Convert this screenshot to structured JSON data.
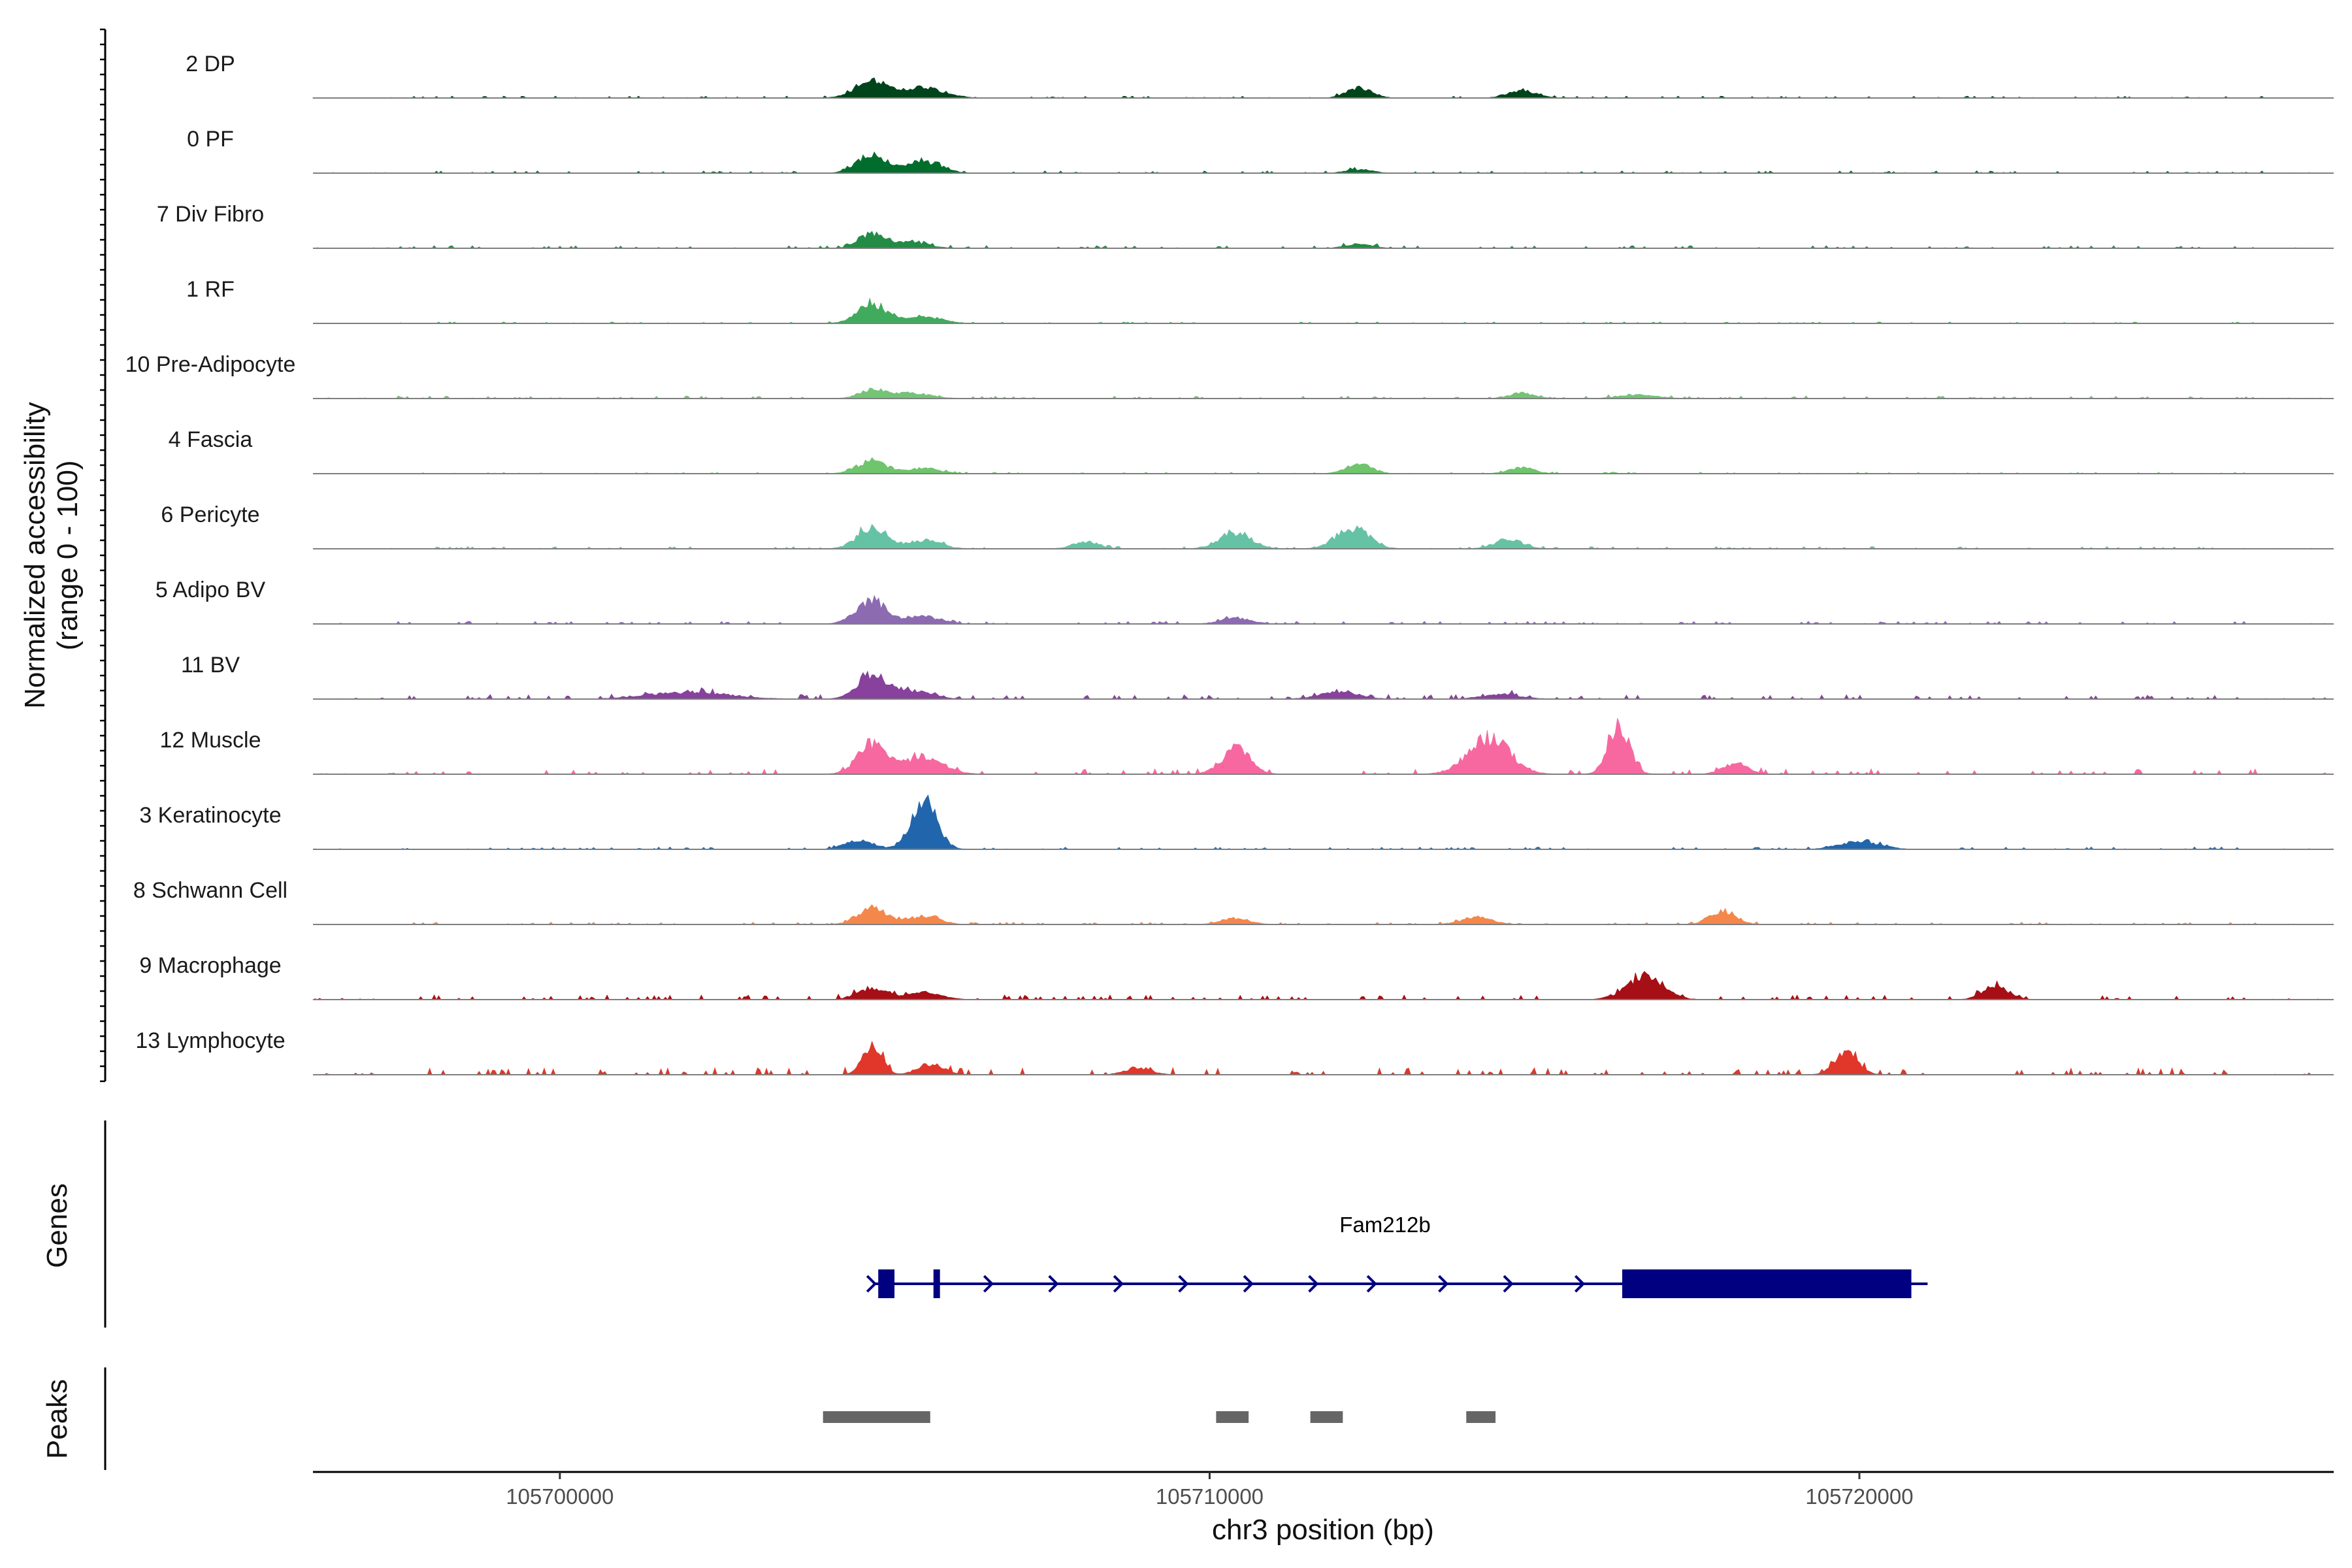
{
  "chart_data": {
    "type": "area",
    "title": "",
    "xlabel": "chr3 position (bp)",
    "ylabel": "Normalized accessibility\n(range 0 - 100)",
    "y_range": [
      0,
      100
    ],
    "xlim": [
      105696200,
      105727300
    ],
    "x_ticks": [
      105700000,
      105710000,
      105720000
    ],
    "x_tick_labels": [
      "105700000",
      "105710000",
      "105720000"
    ],
    "panels": {
      "genes_label": "Genes",
      "peaks_label": "Peaks"
    },
    "series": [
      {
        "name": "2 DP",
        "color": "#00441b",
        "peaks": [
          [
            105704800,
            28,
            250
          ],
          [
            105705600,
            18,
            300
          ],
          [
            105712300,
            16,
            200
          ],
          [
            105714800,
            12,
            220
          ]
        ],
        "noise": 2.5
      },
      {
        "name": "0 PF",
        "color": "#006d2c",
        "peaks": [
          [
            105704800,
            32,
            220
          ],
          [
            105705600,
            20,
            260
          ],
          [
            105712300,
            6,
            200
          ]
        ],
        "noise": 3
      },
      {
        "name": "7 Div Fibro",
        "color": "#238b45",
        "peaks": [
          [
            105704800,
            24,
            200
          ],
          [
            105705400,
            10,
            260
          ],
          [
            105712300,
            7,
            200
          ]
        ],
        "noise": 3.5
      },
      {
        "name": "1 RF",
        "color": "#41ab5d",
        "peaks": [
          [
            105704800,
            34,
            220
          ],
          [
            105705600,
            12,
            260
          ]
        ],
        "noise": 2
      },
      {
        "name": "10 Pre-Adipocyte",
        "color": "#74c476",
        "peaks": [
          [
            105704800,
            14,
            200
          ],
          [
            105705400,
            9,
            300
          ],
          [
            105714800,
            9,
            200
          ],
          [
            105716600,
            6,
            300
          ]
        ],
        "noise": 3.5
      },
      {
        "name": "4 Fascia",
        "color": "#6fc56c",
        "peaks": [
          [
            105704800,
            22,
            220
          ],
          [
            105705600,
            9,
            250
          ],
          [
            105712300,
            16,
            200
          ],
          [
            105714800,
            10,
            200
          ]
        ],
        "noise": 2
      },
      {
        "name": "6 Pericyte",
        "color": "#66c2a4",
        "peaks": [
          [
            105704800,
            36,
            220
          ],
          [
            105705600,
            14,
            260
          ],
          [
            105708100,
            12,
            200
          ],
          [
            105710400,
            28,
            240
          ],
          [
            105712200,
            36,
            250
          ],
          [
            105714600,
            16,
            220
          ]
        ],
        "noise": 3
      },
      {
        "name": "5 Adipo BV",
        "color": "#8c6bb1",
        "peaks": [
          [
            105704800,
            40,
            230
          ],
          [
            105705600,
            12,
            260
          ],
          [
            105710400,
            10,
            230
          ]
        ],
        "noise": 3.5
      },
      {
        "name": "11 BV",
        "color": "#88419d",
        "peaks": [
          [
            105704800,
            40,
            220
          ],
          [
            105702000,
            12,
            600
          ],
          [
            105705400,
            14,
            300
          ],
          [
            105712000,
            12,
            300
          ],
          [
            105714500,
            8,
            300
          ]
        ],
        "noise": 6
      },
      {
        "name": "12 Muscle",
        "color": "#f768a1",
        "peaks": [
          [
            105704800,
            54,
            220
          ],
          [
            105705600,
            30,
            300
          ],
          [
            105710400,
            42,
            220
          ],
          [
            105714300,
            62,
            320
          ],
          [
            105716300,
            86,
            160
          ],
          [
            105718100,
            18,
            200
          ]
        ],
        "noise": 7
      },
      {
        "name": "3 Keratinocyte",
        "color": "#2166ac",
        "peaks": [
          [
            105705600,
            80,
            200
          ],
          [
            105704600,
            14,
            220
          ],
          [
            105720000,
            14,
            300
          ]
        ],
        "noise": 3
      },
      {
        "name": "8 Schwann Cell",
        "color": "#f4874b",
        "peaks": [
          [
            105704800,
            28,
            220
          ],
          [
            105705600,
            14,
            240
          ],
          [
            105710400,
            10,
            220
          ],
          [
            105714100,
            12,
            240
          ],
          [
            105717900,
            24,
            200
          ]
        ],
        "noise": 3
      },
      {
        "name": "9 Macrophage",
        "color": "#a50f15",
        "peaks": [
          [
            105704800,
            20,
            220
          ],
          [
            105705600,
            12,
            260
          ],
          [
            105716700,
            40,
            280
          ],
          [
            105722100,
            22,
            200
          ]
        ],
        "noise": 6
      },
      {
        "name": "13 Lymphocyte",
        "color": "#e0372a",
        "peaks": [
          [
            105704800,
            46,
            150
          ],
          [
            105705700,
            18,
            200
          ],
          [
            105708900,
            12,
            200
          ],
          [
            105719800,
            38,
            180
          ]
        ],
        "noise": 9
      }
    ],
    "gene": {
      "name": "Fam212b",
      "color": "#000080",
      "start": 105704850,
      "end": 105721050,
      "exons": [
        [
          105704900,
          105705150
        ],
        [
          105705750,
          105705850
        ],
        [
          105716350,
          105720800
        ]
      ],
      "strand_arrows": [
        105704800,
        105706600,
        105707600,
        105708600,
        105709600,
        105710600,
        105711600,
        105712500,
        105713600,
        105714600,
        105715700
      ]
    },
    "peaks_track": {
      "color": "#666666",
      "regions": [
        [
          105704050,
          105705700
        ],
        [
          105710100,
          105710600
        ],
        [
          105711550,
          105712050
        ],
        [
          105713950,
          105714400
        ]
      ]
    }
  }
}
